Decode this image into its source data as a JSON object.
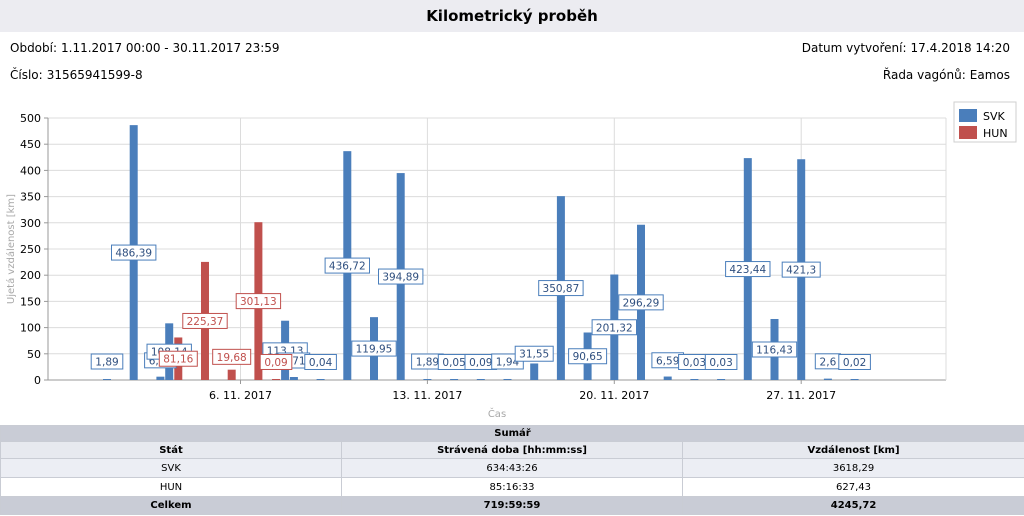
{
  "report": {
    "title": "Kilometrický proběh",
    "period_label": "Období:",
    "period_value": "1.11.2017 00:00 - 30.11.2017 23:59",
    "created_label": "Datum vytvoření:",
    "created_value": "17.4.2018 14:20",
    "number_label": "Číslo:",
    "number_value": "31565941599-8",
    "series_label": "Řada vagónů:",
    "series_value": "Eamos"
  },
  "chart_data": {
    "type": "bar",
    "title": "",
    "xlabel": "Čas",
    "ylabel": "Ujetá vzdálenost [km]",
    "ylim": [
      0,
      500
    ],
    "yticks": [
      0,
      50,
      100,
      150,
      200,
      250,
      300,
      350,
      400,
      450,
      500
    ],
    "xticks": [
      {
        "day": 6,
        "label": "6. 11. 2017"
      },
      {
        "day": 13,
        "label": "13. 11. 2017"
      },
      {
        "day": 20,
        "label": "20. 11. 2017"
      },
      {
        "day": 27,
        "label": "27. 11. 2017"
      }
    ],
    "grid": true,
    "legend_position": "top-right",
    "series": [
      {
        "name": "SVK",
        "color": "#4a7ebb",
        "points": [
          {
            "day": 1,
            "value": 1.89,
            "label": "1,89"
          },
          {
            "day": 2,
            "value": 486.39,
            "label": "486,39"
          },
          {
            "day": 3,
            "value": 6.34,
            "label": "6,34"
          },
          {
            "day": 3.33,
            "value": 108.14,
            "label": "108,14"
          },
          {
            "day": 7.67,
            "value": 113.13,
            "label": "113,13"
          },
          {
            "day": 8,
            "value": 5.71,
            "label": "5,71"
          },
          {
            "day": 9,
            "value": 0.04,
            "label": "0,04"
          },
          {
            "day": 10,
            "value": 436.72,
            "label": "436,72"
          },
          {
            "day": 11,
            "value": 119.95,
            "label": "119,95"
          },
          {
            "day": 12,
            "value": 394.89,
            "label": "394,89"
          },
          {
            "day": 13,
            "value": 1.89,
            "label": "1,89"
          },
          {
            "day": 14,
            "value": 0.05,
            "label": "0,05"
          },
          {
            "day": 15,
            "value": 0.09,
            "label": "0,09"
          },
          {
            "day": 16,
            "value": 1.94,
            "label": "1,94"
          },
          {
            "day": 17,
            "value": 31.55,
            "label": "31,55"
          },
          {
            "day": 18,
            "value": 350.87,
            "label": "350,87"
          },
          {
            "day": 19,
            "value": 90.65,
            "label": "90,65"
          },
          {
            "day": 20,
            "value": 201.32,
            "label": "201,32"
          },
          {
            "day": 21,
            "value": 296.29,
            "label": "296,29"
          },
          {
            "day": 22,
            "value": 6.59,
            "label": "6,59"
          },
          {
            "day": 23,
            "value": 0.03,
            "label": "0,03"
          },
          {
            "day": 24,
            "value": 0.03,
            "label": "0,03"
          },
          {
            "day": 25,
            "value": 423.44,
            "label": "423,44"
          },
          {
            "day": 26,
            "value": 116.43,
            "label": "116,43"
          },
          {
            "day": 27,
            "value": 421.3,
            "label": "421,3"
          },
          {
            "day": 28,
            "value": 2.6,
            "label": "2,6"
          },
          {
            "day": 29,
            "value": 0.02,
            "label": "0,02"
          }
        ]
      },
      {
        "name": "HUN",
        "color": "#c0504d",
        "points": [
          {
            "day": 3.67,
            "value": 81.16,
            "label": "81,16"
          },
          {
            "day": 4.67,
            "value": 225.37,
            "label": "225,37"
          },
          {
            "day": 5.67,
            "value": 19.68,
            "label": "19,68"
          },
          {
            "day": 6.67,
            "value": 301.13,
            "label": "301,13"
          },
          {
            "day": 7.33,
            "value": 0.09,
            "label": "0,09"
          }
        ]
      }
    ]
  },
  "summary": {
    "caption": "Sumář",
    "headers": [
      "Stát",
      "Strávená doba [hh:mm:ss]",
      "Vzdálenost [km]"
    ],
    "rows": [
      [
        "SVK",
        "634:43:26",
        "3618,29"
      ],
      [
        "HUN",
        "85:16:33",
        "627,43"
      ]
    ],
    "total": [
      "Celkem",
      "719:59:59",
      "4245,72"
    ]
  }
}
